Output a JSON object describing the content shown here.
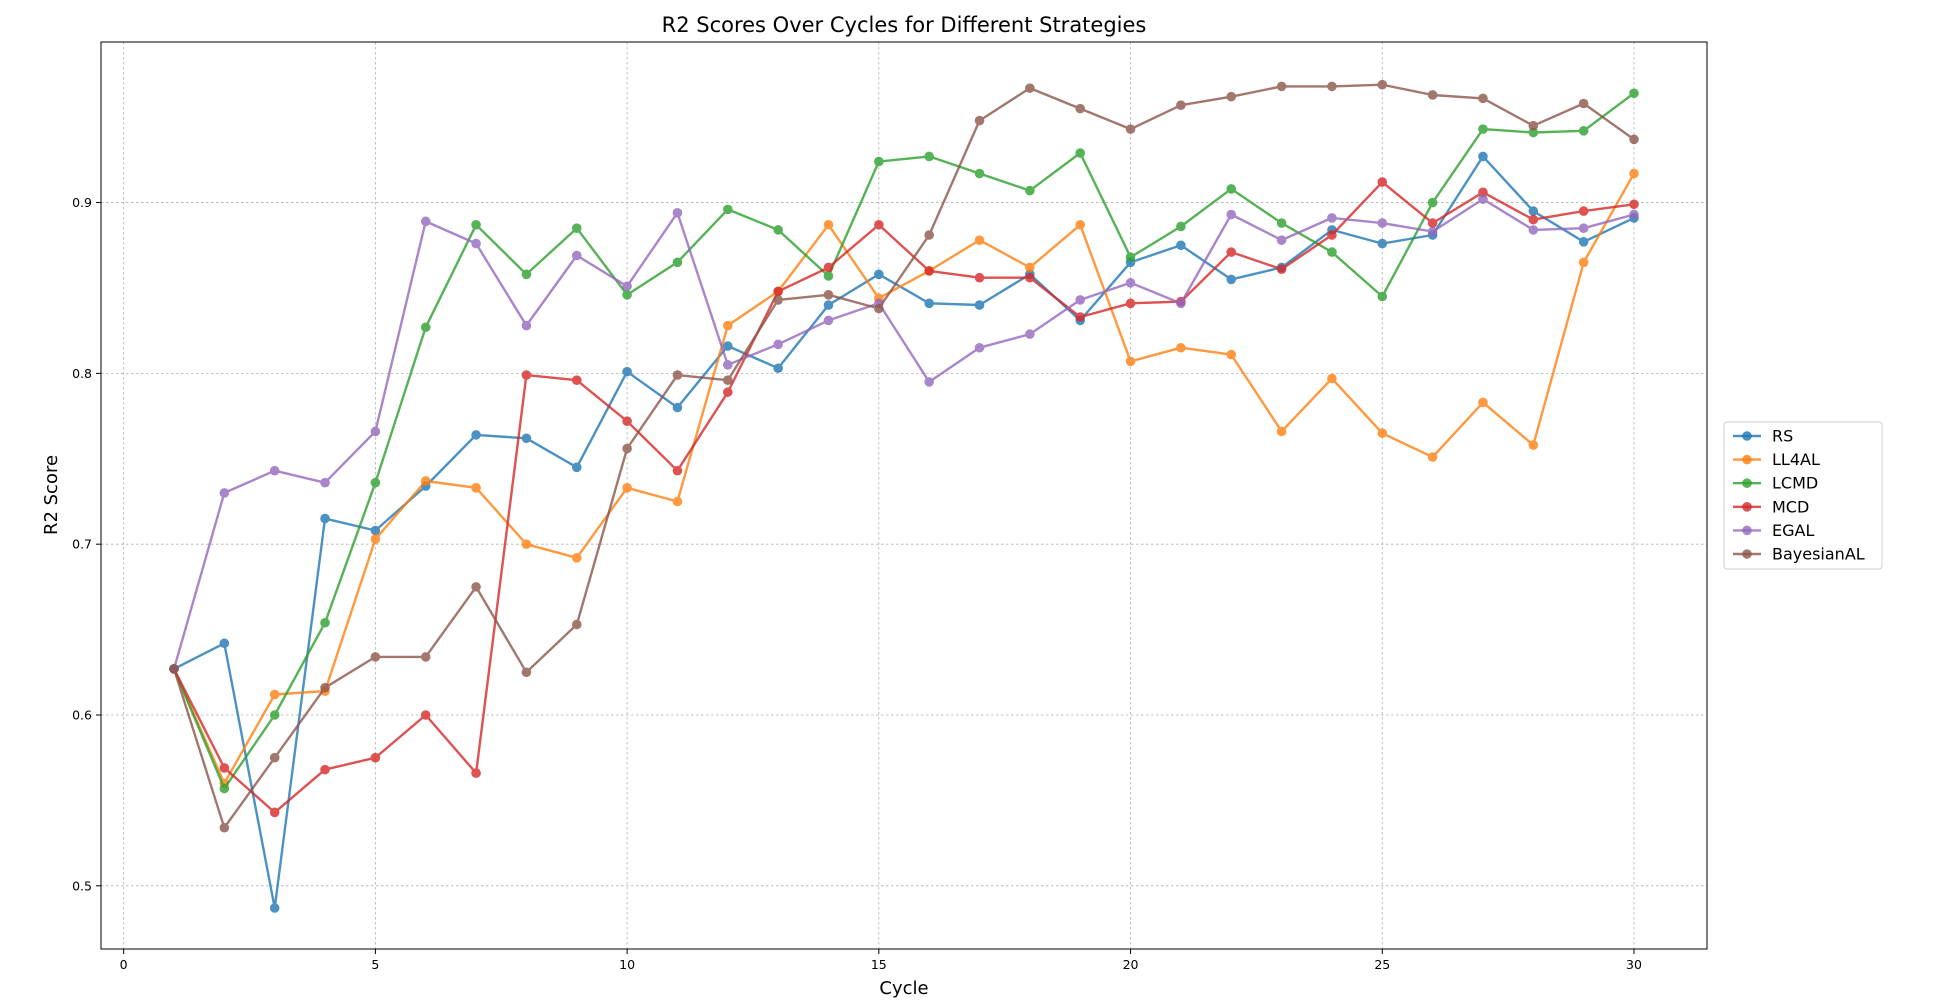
{
  "chart_data": {
    "type": "line",
    "title": "R2 Scores Over Cycles for Different Strategies",
    "xlabel": "Cycle",
    "ylabel": "R2 Score",
    "xlim": [
      -0.45,
      31.45
    ],
    "ylim": [
      0.463,
      0.994
    ],
    "xticks": [
      0,
      5,
      10,
      15,
      20,
      25,
      30
    ],
    "yticks": [
      0.5,
      0.6,
      0.7,
      0.8,
      0.9
    ],
    "ytick_labels": [
      "0.5",
      "0.6",
      "0.7",
      "0.8",
      "0.9"
    ],
    "grid": true,
    "legend_position": "right",
    "x": [
      1,
      2,
      3,
      4,
      5,
      6,
      7,
      8,
      9,
      10,
      11,
      12,
      13,
      14,
      15,
      16,
      17,
      18,
      19,
      20,
      21,
      22,
      23,
      24,
      25,
      26,
      27,
      28,
      29,
      30
    ],
    "series": [
      {
        "name": "RS",
        "color": "#1f77b4",
        "values": [
          0.627,
          0.642,
          0.487,
          0.715,
          0.708,
          0.734,
          0.764,
          0.762,
          0.745,
          0.801,
          0.78,
          0.816,
          0.803,
          0.84,
          0.858,
          0.841,
          0.84,
          0.858,
          0.831,
          0.865,
          0.875,
          0.855,
          0.862,
          0.884,
          0.876,
          0.881,
          0.927,
          0.895,
          0.877,
          0.891
        ]
      },
      {
        "name": "LL4AL",
        "color": "#ff7f0e",
        "values": [
          0.627,
          0.56,
          0.612,
          0.614,
          0.703,
          0.737,
          0.733,
          0.7,
          0.692,
          0.733,
          0.725,
          0.828,
          0.848,
          0.887,
          0.844,
          0.86,
          0.878,
          0.862,
          0.887,
          0.807,
          0.815,
          0.811,
          0.766,
          0.797,
          0.765,
          0.751,
          0.783,
          0.758,
          0.865,
          0.917
        ]
      },
      {
        "name": "LCMD",
        "color": "#2ca02c",
        "values": [
          0.627,
          0.557,
          0.6,
          0.654,
          0.736,
          0.827,
          0.887,
          0.858,
          0.885,
          0.846,
          0.865,
          0.896,
          0.884,
          0.857,
          0.924,
          0.927,
          0.917,
          0.907,
          0.929,
          0.868,
          0.886,
          0.908,
          0.888,
          0.871,
          0.845,
          0.9,
          0.943,
          0.941,
          0.942,
          0.964
        ]
      },
      {
        "name": "MCD",
        "color": "#d62728",
        "values": [
          0.627,
          0.569,
          0.543,
          0.568,
          0.575,
          0.6,
          0.566,
          0.799,
          0.796,
          0.772,
          0.743,
          0.789,
          0.848,
          0.862,
          0.887,
          0.86,
          0.856,
          0.856,
          0.833,
          0.841,
          0.842,
          0.871,
          0.861,
          0.881,
          0.912,
          0.888,
          0.906,
          0.89,
          0.895,
          0.899
        ]
      },
      {
        "name": "EGAL",
        "color": "#9467bd",
        "values": [
          0.627,
          0.73,
          0.743,
          0.736,
          0.766,
          0.889,
          0.876,
          0.828,
          0.869,
          0.851,
          0.894,
          0.805,
          0.817,
          0.831,
          0.841,
          0.795,
          0.815,
          0.823,
          0.843,
          0.853,
          0.841,
          0.893,
          0.878,
          0.891,
          0.888,
          0.883,
          0.902,
          0.884,
          0.885,
          0.893
        ]
      },
      {
        "name": "BayesianAL",
        "color": "#8c564b",
        "values": [
          0.627,
          0.534,
          0.575,
          0.616,
          0.634,
          0.634,
          0.675,
          0.625,
          0.653,
          0.756,
          0.799,
          0.796,
          0.843,
          0.846,
          0.838,
          0.881,
          0.948,
          0.967,
          0.955,
          0.943,
          0.957,
          0.962,
          0.968,
          0.968,
          0.969,
          0.963,
          0.961,
          0.945,
          0.958,
          0.937
        ]
      }
    ]
  }
}
